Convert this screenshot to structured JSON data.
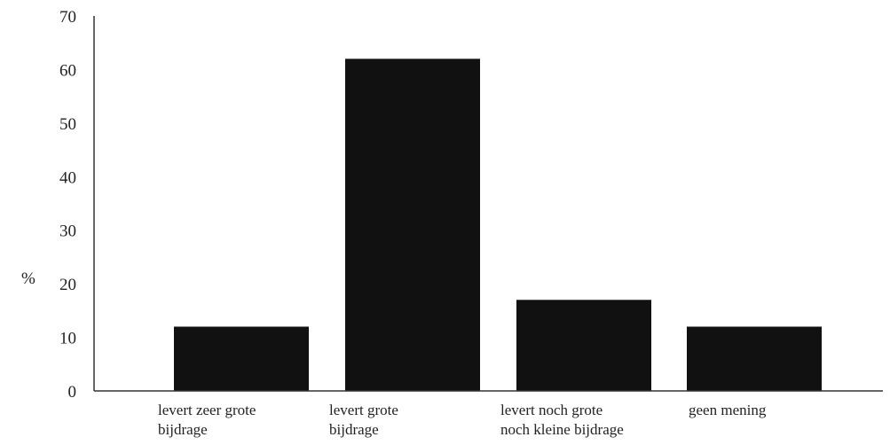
{
  "chart_data": {
    "type": "bar",
    "categories": [
      [
        "levert zeer grote",
        "bijdrage"
      ],
      [
        "levert grote",
        "bijdrage"
      ],
      [
        "levert noch grote",
        "noch kleine bijdrage"
      ],
      [
        "geen mening"
      ]
    ],
    "values": [
      12,
      62,
      17,
      12
    ],
    "ylabel": "%",
    "ylim": [
      0,
      70
    ],
    "yticks": [
      "0",
      "10",
      "20",
      "30",
      "40",
      "50",
      "60",
      "70"
    ],
    "grid": false,
    "bar_color": "#111111"
  }
}
